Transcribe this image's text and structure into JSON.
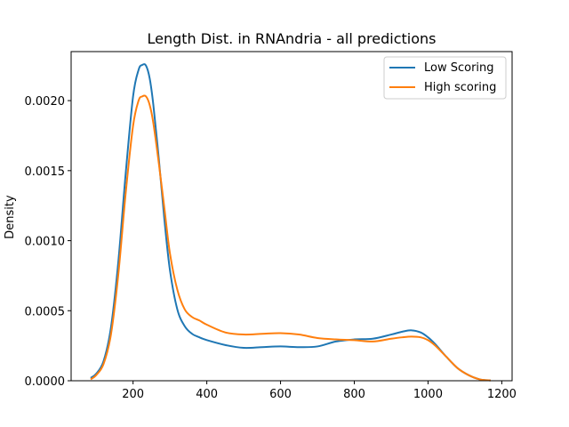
{
  "chart_data": {
    "type": "line",
    "title": "Length Dist. in RNAndria - all predictions",
    "xlabel": "",
    "ylabel": "Density",
    "xlim": [
      32,
      1228
    ],
    "ylim": [
      0,
      0.00235
    ],
    "xticks": [
      200,
      400,
      600,
      800,
      1000,
      1200
    ],
    "yticks": [
      0.0,
      0.0005,
      0.001,
      0.0015,
      0.002
    ],
    "ytick_labels": [
      "0.0000",
      "0.0005",
      "0.0010",
      "0.0015",
      "0.0020"
    ],
    "grid": false,
    "legend_position": "top-right",
    "series": [
      {
        "name": "Low Scoring",
        "color": "#1f77b4",
        "x": [
          85,
          100,
          120,
          140,
          160,
          180,
          200,
          215,
          225,
          235,
          245,
          255,
          270,
          285,
          300,
          320,
          340,
          360,
          380,
          400,
          450,
          500,
          550,
          600,
          650,
          700,
          750,
          800,
          850,
          900,
          930,
          955,
          980,
          1000,
          1020,
          1050,
          1080,
          1110,
          1140,
          1170
        ],
        "y": [
          2e-05,
          5e-05,
          0.00014,
          0.00038,
          0.00085,
          0.00148,
          0.00203,
          0.00222,
          0.002255,
          0.00225,
          0.00216,
          0.00197,
          0.00158,
          0.00115,
          0.00079,
          0.00051,
          0.00039,
          0.000335,
          0.00031,
          0.00029,
          0.000255,
          0.000235,
          0.00024,
          0.000245,
          0.00024,
          0.000245,
          0.00028,
          0.000295,
          0.0003,
          0.00033,
          0.00035,
          0.00036,
          0.000345,
          0.00031,
          0.00026,
          0.00017,
          9e-05,
          4e-05,
          1e-05,
          2e-06
        ]
      },
      {
        "name": "High scoring",
        "color": "#ff7f0e",
        "x": [
          85,
          100,
          120,
          140,
          160,
          180,
          200,
          215,
          225,
          235,
          245,
          255,
          270,
          285,
          300,
          320,
          340,
          360,
          380,
          400,
          450,
          500,
          550,
          600,
          650,
          700,
          750,
          800,
          850,
          900,
          930,
          955,
          980,
          1000,
          1020,
          1050,
          1080,
          1110,
          1140,
          1170
        ],
        "y": [
          1e-05,
          4e-05,
          0.00012,
          0.00033,
          0.00076,
          0.00134,
          0.00182,
          0.002,
          0.00203,
          0.00203,
          0.00197,
          0.00184,
          0.00155,
          0.00123,
          0.00091,
          0.00065,
          0.00051,
          0.000455,
          0.00043,
          0.0004,
          0.000345,
          0.00033,
          0.000335,
          0.00034,
          0.00033,
          0.000305,
          0.000295,
          0.00029,
          0.00028,
          0.0003,
          0.00031,
          0.000315,
          0.00031,
          0.00029,
          0.00025,
          0.00017,
          9e-05,
          4e-05,
          1e-05,
          2e-06
        ]
      }
    ]
  }
}
